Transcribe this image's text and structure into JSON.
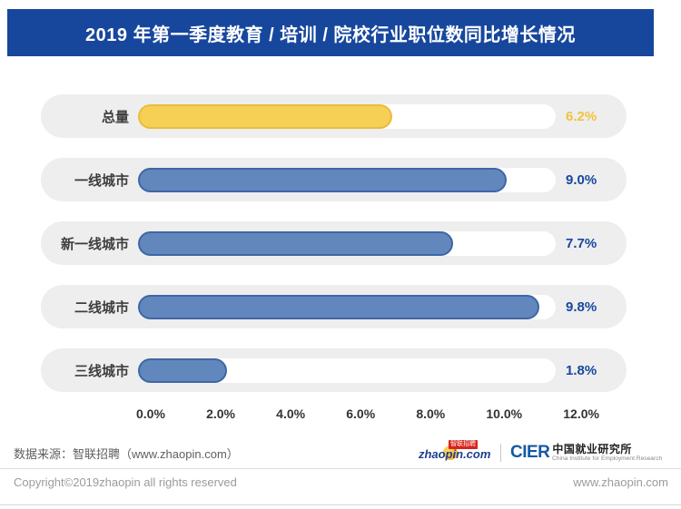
{
  "page": {
    "title": "2019 年第一季度教育 / 培训 / 院校行业职位数同比增长情况"
  },
  "chart_data": {
    "type": "bar",
    "orientation": "horizontal",
    "title": "2019 年第一季度教育 / 培训 / 院校行业职位数同比增长情况",
    "categories": [
      "总量",
      "一线城市",
      "新一线城市",
      "二线城市",
      "三线城市"
    ],
    "values": [
      6.2,
      9.0,
      7.7,
      9.8,
      1.8
    ],
    "labels": [
      "6.2%",
      "9.0%",
      "7.7%",
      "9.8%",
      "1.8%"
    ],
    "x_tick_labels": [
      "0.0%",
      "2.0%",
      "4.0%",
      "6.0%",
      "8.0%",
      "10.0%",
      "12.0%"
    ],
    "xlim": [
      0,
      12
    ],
    "bar_scale_max_percent": 10.2,
    "grid": false,
    "legend": false,
    "highlight_index": 0,
    "colors": {
      "header_blue": "#17479D",
      "bar_fill": "#6187BD",
      "bar_border": "#3E66A5",
      "value_text": "#17479D",
      "highlight_fill": "#F6CF55",
      "highlight_border": "#E9BC3D",
      "highlight_value_text": "#F1C33C",
      "row_background": "#EEEEEF",
      "track_background": "#FFFFFF"
    }
  },
  "footer": {
    "source": "数据来源：智联招聘（www.zhaopin.com）",
    "copyright": "Copyright©2019zhaopin all rights reserved",
    "website": "www.zhaopin.com",
    "zhaopin_logo_text": "zhaopin.com",
    "zhaopin_badge_text": "智联招聘",
    "cier_acronym": "CIER",
    "cier_name_cn": "中国就业研究所",
    "cier_name_en": "China Institute for Employment Research"
  }
}
